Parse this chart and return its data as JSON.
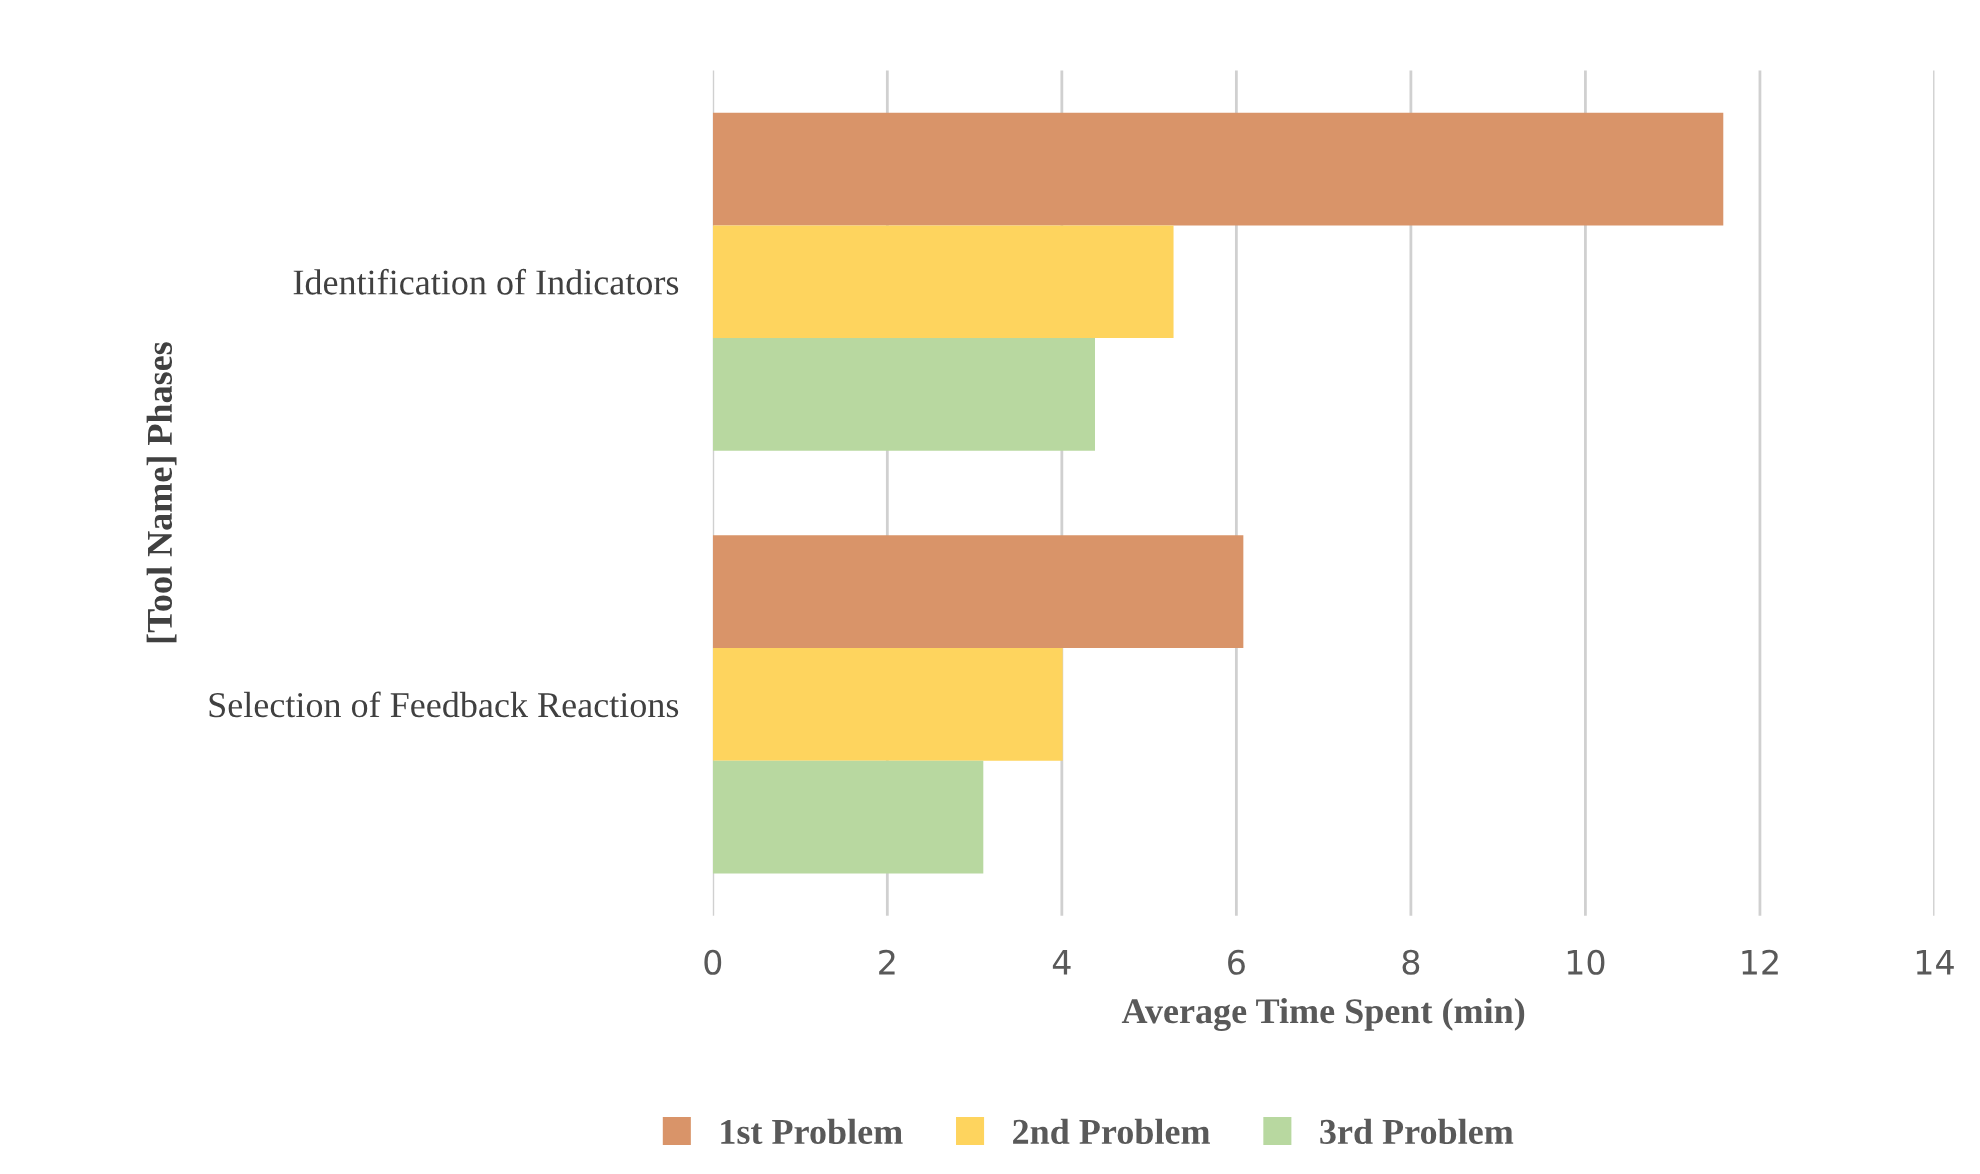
{
  "chart_data": {
    "type": "bar",
    "orientation": "horizontal",
    "xlabel": "Average Time Spent (min)",
    "ylabel": "[Tool Name] Phases",
    "categories": [
      "Identification of Indicators",
      "Selection of Feedback Reactions"
    ],
    "series": [
      {
        "name": "1st Problem",
        "color": "#d99469",
        "values": [
          11.58,
          6.08
        ]
      },
      {
        "name": "2nd Problem",
        "color": "#fed45e",
        "values": [
          5.28,
          4.01
        ]
      },
      {
        "name": "3rd Problem",
        "color": "#b8d8a0",
        "values": [
          4.38,
          3.1
        ]
      }
    ],
    "xlim": [
      0,
      14
    ],
    "xticks": [
      0,
      2,
      4,
      6,
      8,
      10,
      12,
      14
    ],
    "grid": "x",
    "legend": "bottom"
  }
}
